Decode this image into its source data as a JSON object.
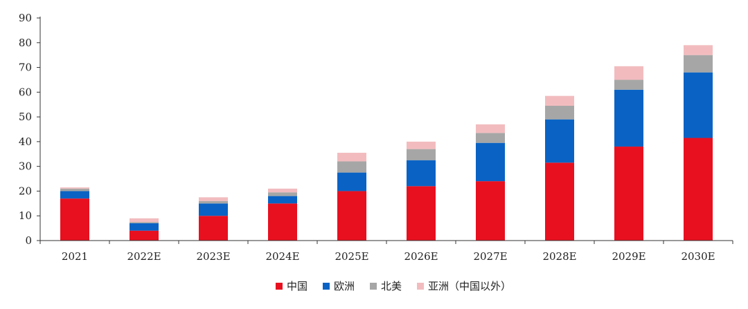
{
  "chart_data": {
    "type": "bar",
    "stacked": true,
    "categories": [
      "2021",
      "2022E",
      "2023E",
      "2024E",
      "2025E",
      "2026E",
      "2027E",
      "2028E",
      "2029E",
      "2030E"
    ],
    "series": [
      {
        "name": "中国",
        "color": "#e8101f",
        "values": [
          17,
          4,
          10,
          15,
          20,
          22,
          24,
          31.5,
          38,
          41.5
        ]
      },
      {
        "name": "欧洲",
        "color": "#0a63c4",
        "values": [
          3,
          3,
          5,
          3,
          7.5,
          10.5,
          15.5,
          17.5,
          23,
          26.5
        ]
      },
      {
        "name": "北美",
        "color": "#a6a6a6",
        "values": [
          1,
          0.5,
          1,
          1.5,
          4.5,
          4.5,
          4,
          5.5,
          4,
          7
        ]
      },
      {
        "name": "亚洲（中国以外）",
        "color": "#f2bcbf",
        "values": [
          0.5,
          1.5,
          1.5,
          1.5,
          3.5,
          3,
          3.5,
          4,
          5.5,
          4
        ]
      }
    ],
    "ylim": [
      0,
      90
    ],
    "yticks": [
      0,
      10,
      20,
      30,
      40,
      50,
      60,
      70,
      80,
      90
    ],
    "grid": false,
    "legend": "bottom-center",
    "title": "",
    "xlabel": "",
    "ylabel": ""
  }
}
